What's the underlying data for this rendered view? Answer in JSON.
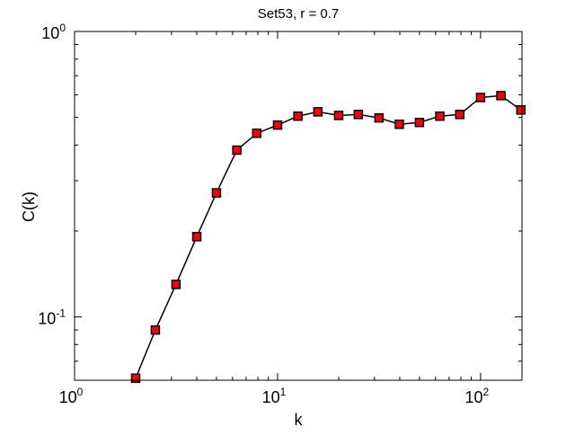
{
  "chart_data": {
    "type": "line",
    "title": "Set53, r = 0.7",
    "xlabel": "k",
    "ylabel": "C(k)",
    "xscale": "log",
    "yscale": "log",
    "xlim": [
      1,
      160
    ],
    "ylim": [
      0.06,
      1
    ],
    "grid": false,
    "x_ticks": [
      {
        "base": "10",
        "exp": "0",
        "value": 1
      },
      {
        "base": "10",
        "exp": "1",
        "value": 10
      },
      {
        "base": "10",
        "exp": "2",
        "value": 100
      }
    ],
    "y_ticks": [
      {
        "base": "10",
        "exp": "-1",
        "value": 0.1
      },
      {
        "base": "10",
        "exp": "0",
        "value": 1
      }
    ],
    "series": [
      {
        "color": "#ff0000",
        "edge_color": "#000000",
        "marker": "square",
        "x": [
          2,
          2.5,
          3.16,
          4,
          5,
          6.3,
          7.9,
          10,
          12.6,
          15.8,
          20,
          25,
          31.6,
          39.8,
          50,
          63,
          79,
          100,
          126,
          158
        ],
        "y": [
          0.061,
          0.09,
          0.13,
          0.191,
          0.272,
          0.384,
          0.44,
          0.47,
          0.505,
          0.523,
          0.508,
          0.512,
          0.498,
          0.473,
          0.48,
          0.505,
          0.512,
          0.587,
          0.596,
          0.531
        ]
      }
    ]
  }
}
